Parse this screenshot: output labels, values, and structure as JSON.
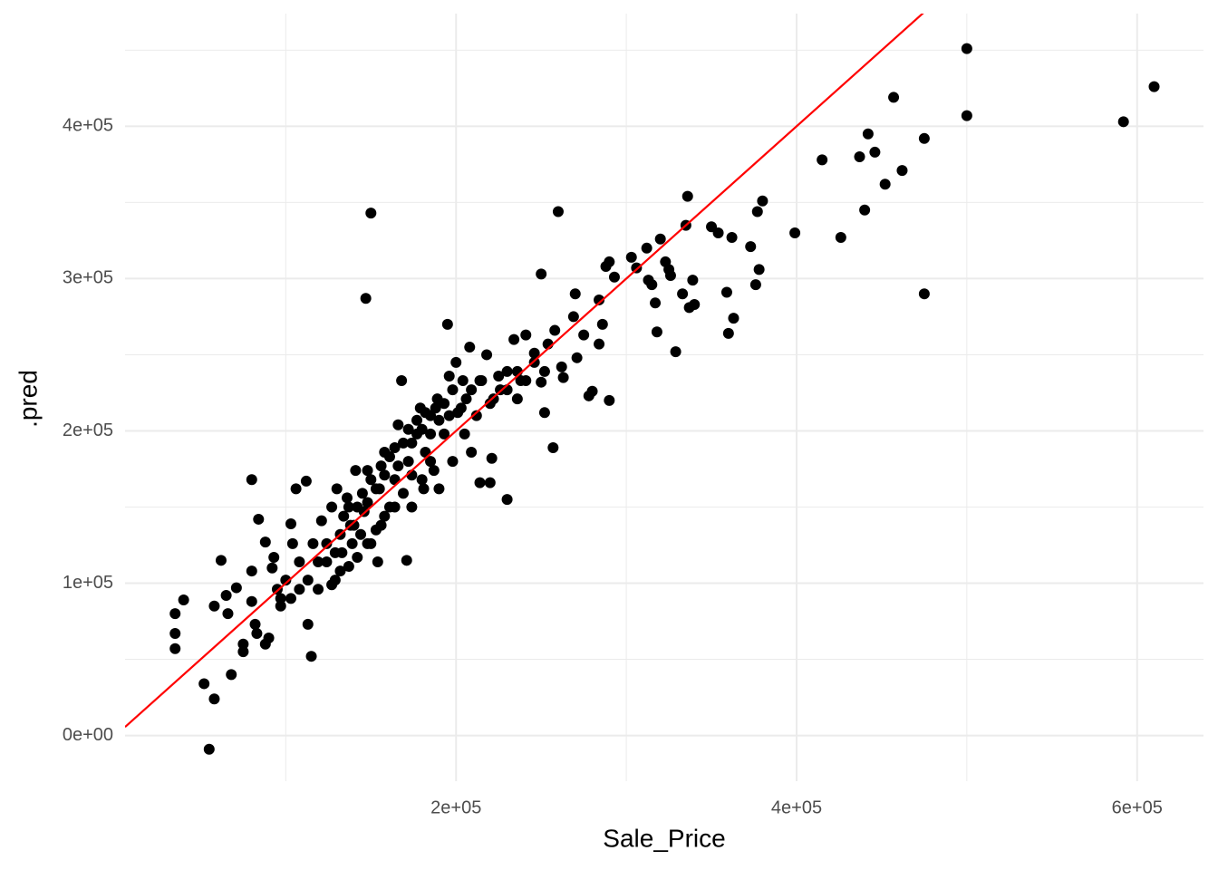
{
  "chart_data": {
    "type": "scatter",
    "x_label": "Sale_Price",
    "y_label": ".pred",
    "x": [
      35000,
      35000,
      35000,
      40000,
      52000,
      58000,
      55000,
      68000,
      62000,
      58000,
      65000,
      66000,
      71000,
      75000,
      75000,
      80000,
      80000,
      80000,
      82000,
      83000,
      84000,
      88000,
      88000,
      90000,
      92000,
      93000,
      95000,
      97000,
      100000,
      103000,
      106000,
      104000,
      108000,
      112000,
      113000,
      115000,
      116000,
      119000,
      121000,
      124000,
      127000,
      129000,
      130000,
      133000,
      136000,
      138000,
      139000,
      141000,
      144000,
      146000,
      147000,
      150000,
      148000,
      150000,
      154000,
      155000,
      156000,
      158000,
      161000,
      164000,
      166000,
      168000,
      171000,
      172000,
      174000,
      177000,
      179000,
      181000,
      182000,
      185000,
      187000,
      189000,
      190000,
      193000,
      195000,
      196000,
      198000,
      200000,
      203000,
      205000,
      208000,
      209000,
      212000,
      214000,
      215000,
      218000,
      220000,
      221000,
      222000,
      226000,
      230000,
      230000,
      234000,
      236000,
      238000,
      241000,
      246000,
      250000,
      250000,
      252000,
      254000,
      257000,
      258000,
      260000,
      262000,
      263000,
      269000,
      270000,
      271000,
      275000,
      278000,
      280000,
      284000,
      284000,
      286000,
      288000,
      290000,
      290000,
      293000,
      303000,
      306000,
      312000,
      313000,
      315000,
      317000,
      318000,
      320000,
      323000,
      325000,
      326000,
      329000,
      333000,
      336000,
      337000,
      339000,
      340000,
      335000,
      350000,
      354000,
      359000,
      360000,
      362000,
      363000,
      373000,
      376000,
      377000,
      378000,
      380000,
      399000,
      415000,
      426000,
      437000,
      440000,
      442000,
      446000,
      452000,
      457000,
      462000,
      475000,
      475000,
      500000,
      500000,
      592000,
      610000,
      124000,
      129000,
      132000,
      134000,
      137000,
      140000,
      142000,
      145000,
      148000,
      150000,
      153000,
      156000,
      158000,
      161000,
      164000,
      166000,
      169000,
      172000,
      174000,
      177000,
      180000,
      182000,
      185000,
      188000,
      190000,
      193000,
      196000,
      198000,
      201000,
      204000,
      206000,
      209000,
      214000,
      220000,
      225000,
      230000,
      236000,
      241000,
      246000,
      252000,
      113000,
      119000,
      108000,
      103000,
      97000,
      127000,
      132000,
      137000,
      142000,
      148000,
      153000,
      158000,
      164000,
      169000,
      174000,
      180000,
      185000
    ],
    "values": [
      80000,
      67000,
      57000,
      89000,
      34000,
      24000,
      -9000,
      40000,
      115000,
      85000,
      92000,
      80000,
      97000,
      60000,
      55000,
      168000,
      108000,
      88000,
      73000,
      67000,
      142000,
      127000,
      60000,
      64000,
      110000,
      117000,
      96000,
      90000,
      102000,
      139000,
      162000,
      126000,
      114000,
      167000,
      73000,
      52000,
      126000,
      96000,
      141000,
      114000,
      150000,
      102000,
      162000,
      120000,
      156000,
      138000,
      126000,
      174000,
      132000,
      147000,
      287000,
      343000,
      174000,
      126000,
      114000,
      162000,
      138000,
      186000,
      150000,
      168000,
      204000,
      233000,
      115000,
      180000,
      150000,
      198000,
      215000,
      162000,
      186000,
      210000,
      174000,
      221000,
      162000,
      198000,
      270000,
      236000,
      180000,
      245000,
      215000,
      198000,
      255000,
      186000,
      210000,
      166000,
      233000,
      250000,
      166000,
      182000,
      221000,
      227000,
      155000,
      239000,
      260000,
      221000,
      233000,
      263000,
      251000,
      232000,
      303000,
      212000,
      257000,
      189000,
      266000,
      344000,
      242000,
      235000,
      275000,
      290000,
      248000,
      263000,
      223000,
      226000,
      257000,
      286000,
      270000,
      308000,
      220000,
      311000,
      301000,
      314000,
      307000,
      320000,
      299000,
      296000,
      284000,
      265000,
      326000,
      311000,
      306000,
      302000,
      252000,
      290000,
      354000,
      281000,
      299000,
      283000,
      335000,
      334000,
      330000,
      291000,
      264000,
      327000,
      274000,
      321000,
      296000,
      344000,
      306000,
      351000,
      330000,
      378000,
      327000,
      380000,
      345000,
      395000,
      383000,
      362000,
      419000,
      371000,
      392000,
      290000,
      451000,
      407000,
      403000,
      426000,
      126000,
      120000,
      132000,
      144000,
      150000,
      138000,
      150000,
      159000,
      153000,
      168000,
      162000,
      177000,
      171000,
      183000,
      189000,
      177000,
      192000,
      201000,
      192000,
      207000,
      201000,
      212000,
      198000,
      215000,
      207000,
      218000,
      210000,
      227000,
      212000,
      233000,
      221000,
      227000,
      233000,
      218000,
      236000,
      227000,
      239000,
      233000,
      245000,
      239000,
      102000,
      114000,
      96000,
      90000,
      85000,
      99000,
      108000,
      111000,
      117000,
      126000,
      135000,
      144000,
      150000,
      159000,
      171000,
      168000,
      180000
    ],
    "color": "#000000",
    "abline": {
      "slope": 1,
      "intercept": 0,
      "color": "#ff0000"
    },
    "xlim": [
      5600,
      639000
    ],
    "ylim": [
      -30000,
      474000
    ],
    "xticks": [
      {
        "value": 200000,
        "label": "2e+05"
      },
      {
        "value": 400000,
        "label": "4e+05"
      },
      {
        "value": 600000,
        "label": "6e+05"
      }
    ],
    "yticks": [
      {
        "value": 0,
        "label": "0e+00"
      },
      {
        "value": 100000,
        "label": "1e+05"
      },
      {
        "value": 200000,
        "label": "2e+05"
      },
      {
        "value": 300000,
        "label": "3e+05"
      },
      {
        "value": 400000,
        "label": "4e+05"
      }
    ],
    "xminor": [
      100000,
      300000,
      500000
    ],
    "yminor": [
      50000,
      150000,
      250000,
      350000,
      450000
    ],
    "grid": true
  }
}
